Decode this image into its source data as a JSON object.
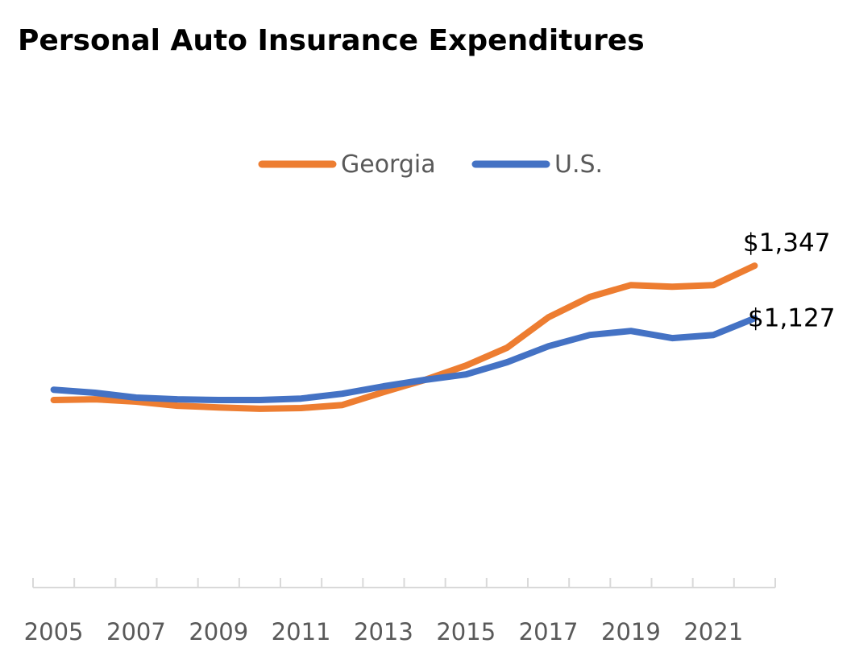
{
  "chart_data": {
    "type": "line",
    "title": "Personal Auto Insurance Expenditures",
    "xlabel": "",
    "ylabel": "",
    "x": [
      2005,
      2006,
      2007,
      2008,
      2009,
      2010,
      2011,
      2012,
      2013,
      2014,
      2015,
      2016,
      2017,
      2018,
      2019,
      2020,
      2021,
      2022
    ],
    "x_tick_labels": [
      "2005",
      "2007",
      "2009",
      "2011",
      "2013",
      "2015",
      "2017",
      "2019",
      "2021"
    ],
    "ylim": [
      0,
      1600
    ],
    "y_axis_visible": false,
    "grid": false,
    "legend_position": "top",
    "series": [
      {
        "name": "Georgia",
        "color": "#ED7D31",
        "values": [
          785,
          788,
          778,
          761,
          754,
          748,
          751,
          764,
          818,
          869,
          929,
          1004,
          1131,
          1216,
          1266,
          1259,
          1266,
          1347
        ],
        "end_label": "$1,347"
      },
      {
        "name": "U.S.",
        "color": "#4472C4",
        "values": [
          828,
          815,
          795,
          788,
          785,
          785,
          791,
          811,
          842,
          869,
          892,
          943,
          1010,
          1057,
          1074,
          1044,
          1057,
          1127
        ],
        "end_label": "$1,127"
      }
    ]
  }
}
